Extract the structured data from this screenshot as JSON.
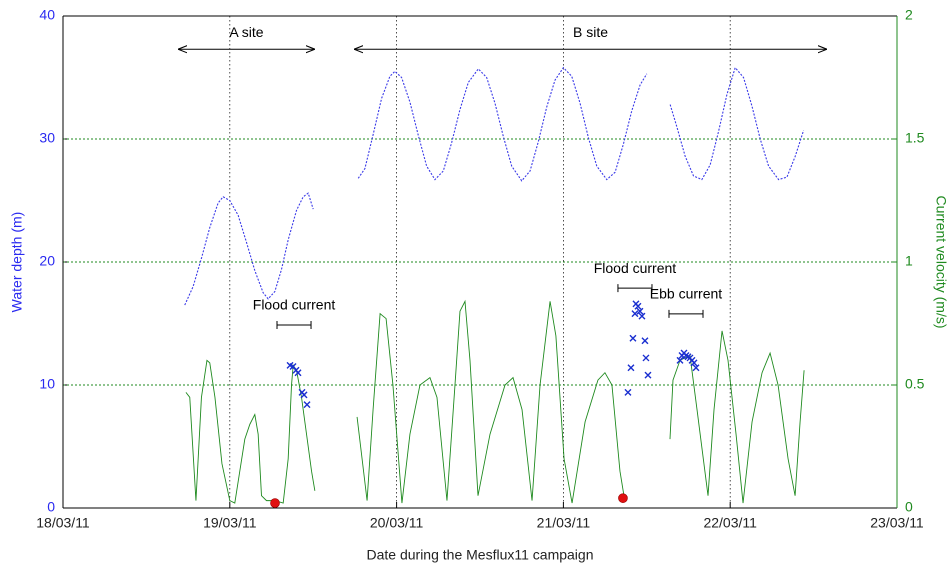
{
  "chart_data": {
    "type": "line",
    "xlabel": "Date during the Mesflux11 campaign",
    "ylabel": "Water depth (m)",
    "y2label": "Current velocity (m/s)",
    "xlim": [
      18,
      23
    ],
    "xticks": [
      {
        "value": 18,
        "label": "18/03/11"
      },
      {
        "value": 19,
        "label": "19/03/11"
      },
      {
        "value": 20,
        "label": "20/03/11"
      },
      {
        "value": 21,
        "label": "21/03/11"
      },
      {
        "value": 22,
        "label": "22/03/11"
      },
      {
        "value": 23,
        "label": "23/03/11"
      }
    ],
    "ylim": [
      0,
      40
    ],
    "yticks": [
      0,
      10,
      20,
      30,
      40
    ],
    "y2lim": [
      0,
      2
    ],
    "y2ticks": [
      0,
      0.5,
      1,
      1.5,
      2
    ],
    "ycolor": "#2a2af0",
    "y2color": "#1f8a1f",
    "grid": true,
    "series": [
      {
        "type": "line",
        "axis": "y",
        "color": "#3a3ae8",
        "dash": true,
        "x": [
          18.73,
          18.78,
          18.83,
          18.88,
          18.93,
          18.96,
          19.0,
          19.05,
          19.1,
          19.15,
          19.2,
          19.23,
          19.27,
          19.31,
          19.35,
          19.4,
          19.44,
          19.47,
          19.5,
          19.63,
          19.77,
          19.81,
          19.86,
          19.91,
          19.96,
          19.99,
          20.03,
          20.08,
          20.13,
          20.18,
          20.23,
          20.28,
          20.33,
          20.38,
          20.43,
          20.49,
          20.54,
          20.59,
          20.64,
          20.69,
          20.75,
          20.8,
          20.85,
          20.9,
          20.95,
          21.0,
          21.05,
          21.1,
          21.15,
          21.2,
          21.26,
          21.31,
          21.36,
          21.41,
          21.46,
          21.5,
          21.57,
          21.64,
          21.68,
          21.73,
          21.78,
          21.83,
          21.88,
          21.93,
          21.98,
          22.03,
          22.08,
          22.13,
          22.18,
          22.23,
          22.29,
          22.34,
          22.39,
          22.44
        ],
        "values": [
          16.5,
          18.0,
          20.3,
          22.8,
          24.8,
          25.3,
          25.0,
          23.8,
          21.6,
          19.3,
          17.5,
          17.0,
          17.6,
          19.4,
          21.8,
          24.2,
          25.3,
          25.6,
          24.3,
          null,
          26.8,
          27.6,
          30.4,
          33.3,
          35.1,
          35.5,
          35.0,
          33.0,
          30.3,
          27.8,
          26.7,
          27.4,
          29.7,
          32.4,
          34.6,
          35.7,
          35.0,
          32.9,
          30.2,
          27.8,
          26.6,
          27.4,
          29.8,
          32.6,
          34.8,
          35.8,
          35.1,
          32.9,
          30.1,
          27.8,
          26.7,
          27.3,
          29.6,
          32.3,
          34.4,
          35.3,
          null,
          32.8,
          31.0,
          28.6,
          27.0,
          26.7,
          27.9,
          30.6,
          33.6,
          35.8,
          35.0,
          32.7,
          30.0,
          27.8,
          26.7,
          26.9,
          28.6,
          30.7
        ]
      },
      {
        "type": "line",
        "axis": "y2",
        "color": "#1f8a1f",
        "dash": false,
        "x": [
          18.737,
          18.76,
          18.797,
          18.83,
          18.863,
          18.88,
          18.911,
          18.953,
          19.0,
          19.03,
          19.06,
          19.09,
          19.12,
          19.15,
          19.17,
          19.19,
          19.22,
          19.27,
          19.32,
          19.35,
          19.37,
          19.38,
          19.4,
          19.43,
          19.46,
          19.49,
          19.51,
          19.63,
          19.763,
          19.823,
          19.859,
          19.901,
          19.937,
          19.978,
          20.032,
          20.08,
          20.14,
          20.2,
          20.242,
          20.302,
          20.35,
          20.38,
          20.41,
          20.44,
          20.488,
          20.56,
          20.65,
          20.698,
          20.752,
          20.812,
          20.86,
          20.92,
          20.955,
          21.004,
          21.052,
          21.13,
          21.207,
          21.249,
          21.291,
          21.339,
          21.363,
          21.5,
          21.639,
          21.657,
          21.699,
          21.759,
          21.801,
          21.867,
          21.903,
          21.951,
          21.987,
          22.035,
          22.077,
          22.131,
          22.191,
          22.239,
          22.287,
          22.347,
          22.389,
          22.419,
          22.443
        ],
        "values": [
          0.47,
          0.45,
          0.03,
          0.45,
          0.6,
          0.59,
          0.45,
          0.18,
          0.03,
          0.02,
          0.15,
          0.28,
          0.34,
          0.38,
          0.3,
          0.05,
          0.03,
          0.03,
          0.02,
          0.2,
          0.5,
          0.58,
          0.56,
          0.45,
          0.3,
          0.15,
          0.07,
          null,
          0.37,
          0.03,
          0.4,
          0.79,
          0.77,
          0.5,
          0.02,
          0.3,
          0.5,
          0.53,
          0.45,
          0.03,
          0.5,
          0.8,
          0.84,
          0.6,
          0.05,
          0.3,
          0.5,
          0.53,
          0.4,
          0.03,
          0.5,
          0.84,
          0.7,
          0.2,
          0.02,
          0.35,
          0.52,
          0.55,
          0.5,
          0.15,
          0.05,
          null,
          0.28,
          0.52,
          0.6,
          0.62,
          0.4,
          0.05,
          0.4,
          0.72,
          0.6,
          0.3,
          0.02,
          0.35,
          0.55,
          0.63,
          0.5,
          0.2,
          0.05,
          0.35,
          0.56
        ]
      },
      {
        "type": "scatter",
        "marker": "x",
        "axis": "y2",
        "color": "#1a2fd0",
        "x": [
          19.361,
          19.379,
          19.397,
          19.409,
          19.433,
          19.445,
          19.463,
          21.387,
          21.405,
          21.417,
          21.429,
          21.435,
          21.447,
          21.459,
          21.471,
          21.489,
          21.495,
          21.507,
          21.699,
          21.711,
          21.723,
          21.735,
          21.747,
          21.759,
          21.771,
          21.783,
          21.795
        ],
        "values": [
          0.58,
          0.575,
          0.56,
          0.55,
          0.47,
          0.46,
          0.42,
          0.47,
          0.57,
          0.69,
          0.79,
          0.83,
          0.82,
          0.8,
          0.78,
          0.68,
          0.61,
          0.54,
          0.6,
          0.62,
          0.63,
          0.62,
          0.615,
          0.61,
          0.6,
          0.59,
          0.57
        ]
      },
      {
        "type": "scatter",
        "marker": "dot",
        "axis": "y2",
        "color": "#e01010",
        "x": [
          19.271,
          21.357
        ],
        "values": [
          0.02,
          0.04
        ]
      }
    ],
    "annotations": [
      {
        "text": "A site",
        "kind": "arrow",
        "axis": "y",
        "x": [
          18.69,
          19.51
        ],
        "y": 37.3
      },
      {
        "text": "B site",
        "kind": "arrow",
        "axis": "y",
        "x": [
          19.745,
          22.58
        ],
        "y": 37.3
      },
      {
        "text": "Flood current",
        "kind": "bar",
        "axis": "y2",
        "x": [
          19.283,
          19.487
        ],
        "y": 0.744
      },
      {
        "text": "Flood current",
        "kind": "bar",
        "axis": "y2",
        "x": [
          21.327,
          21.531
        ],
        "y": 0.894
      },
      {
        "text": "Ebb current",
        "kind": "bar",
        "axis": "y2",
        "x": [
          21.633,
          21.837
        ],
        "y": 0.789
      }
    ]
  }
}
